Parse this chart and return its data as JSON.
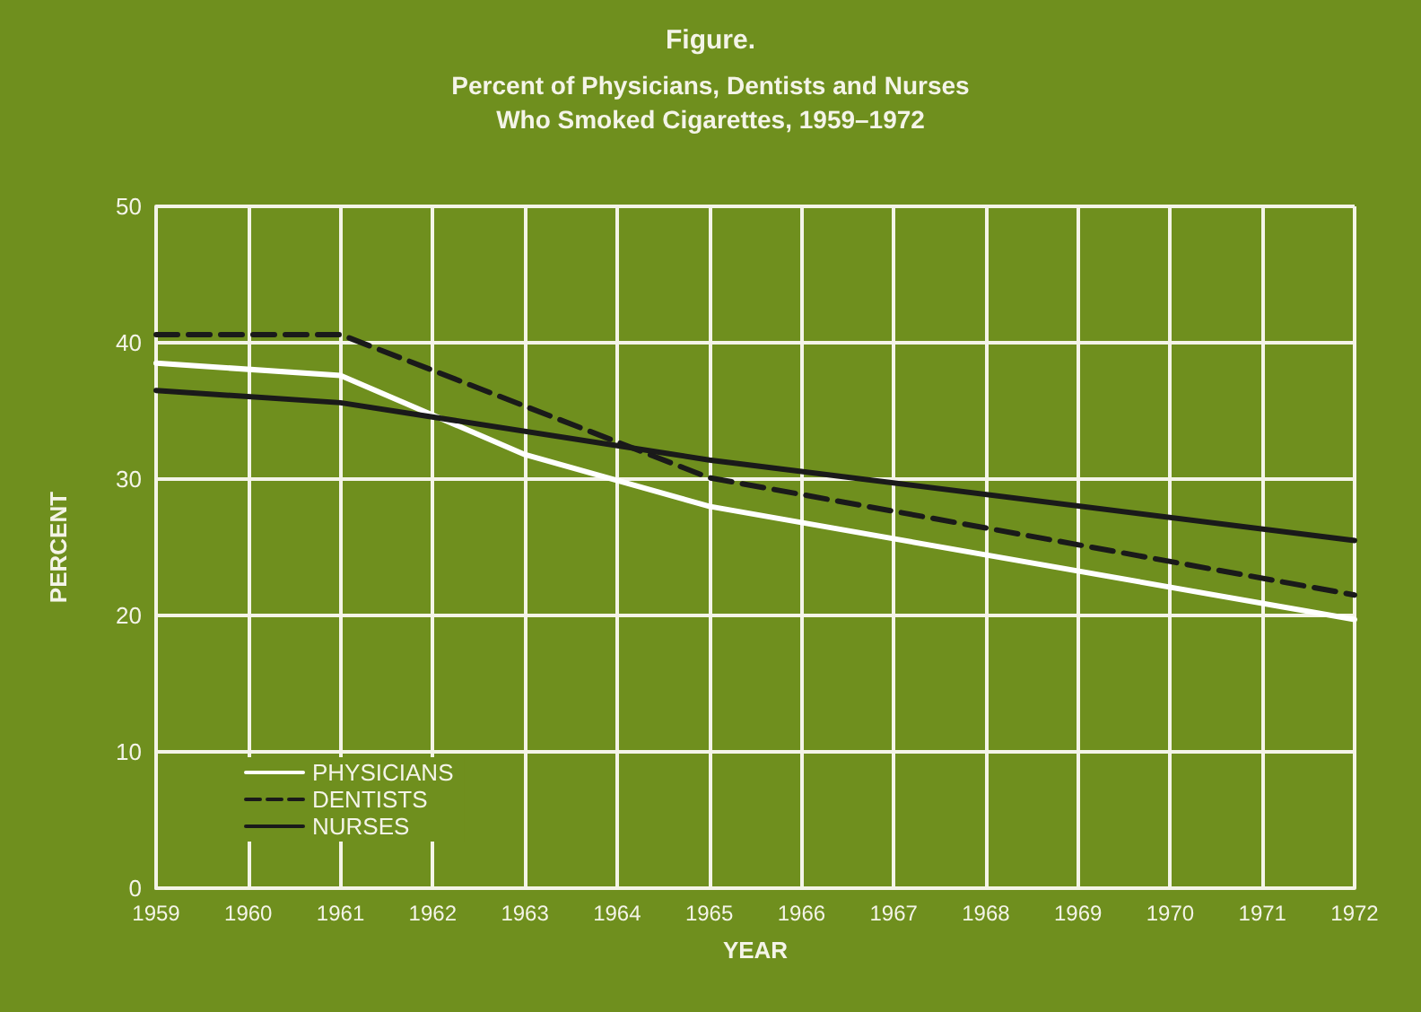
{
  "chart_data": {
    "type": "line",
    "title": "Figure.",
    "subtitle": "Percent of Physicians, Dentists and Nurses\nWho Smoked Cigarettes, 1959–1972",
    "xlabel": "YEAR",
    "ylabel": "PERCENT",
    "xlim": [
      1959,
      1972
    ],
    "xticks": [
      1959,
      1960,
      1961,
      1962,
      1963,
      1964,
      1965,
      1966,
      1967,
      1968,
      1969,
      1970,
      1971,
      1972
    ],
    "ylim": [
      0,
      50
    ],
    "yticks": [
      0,
      10,
      20,
      30,
      40,
      50
    ],
    "grid": true,
    "legend": "bottom left",
    "marker": "none",
    "series": [
      {
        "name": "PHYSICIANS",
        "color": "#ffffff",
        "line_style": "solid",
        "x": [
          1959,
          1961,
          1963,
          1965,
          1972
        ],
        "values": [
          38.5,
          37.6,
          31.8,
          28.0,
          19.7
        ]
      },
      {
        "name": "DENTISTS",
        "color": "#1a1a1a",
        "line_style": "dashed",
        "x": [
          1959,
          1961,
          1965,
          1972
        ],
        "values": [
          40.6,
          40.6,
          30.1,
          21.5
        ]
      },
      {
        "name": "NURSES",
        "color": "#1a1a1a",
        "line_style": "solid",
        "x": [
          1959,
          1961,
          1965,
          1972
        ],
        "values": [
          36.5,
          35.6,
          31.4,
          25.5
        ]
      }
    ]
  }
}
